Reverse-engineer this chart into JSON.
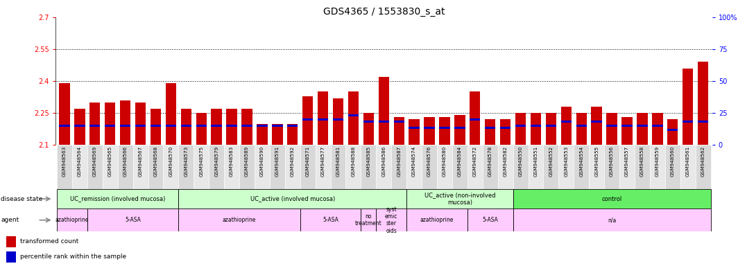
{
  "title": "GDS4365 / 1553830_s_at",
  "samples": [
    "GSM948563",
    "GSM948564",
    "GSM948569",
    "GSM948565",
    "GSM948566",
    "GSM948567",
    "GSM948568",
    "GSM948570",
    "GSM948573",
    "GSM948575",
    "GSM948579",
    "GSM948583",
    "GSM948589",
    "GSM948590",
    "GSM948591",
    "GSM948592",
    "GSM948571",
    "GSM948577",
    "GSM948581",
    "GSM948588",
    "GSM948585",
    "GSM948586",
    "GSM948587",
    "GSM948574",
    "GSM948576",
    "GSM948580",
    "GSM948584",
    "GSM948572",
    "GSM948578",
    "GSM948582",
    "GSM948550",
    "GSM948551",
    "GSM948552",
    "GSM948553",
    "GSM948554",
    "GSM948555",
    "GSM948556",
    "GSM948557",
    "GSM948558",
    "GSM948559",
    "GSM948560",
    "GSM948561",
    "GSM948562"
  ],
  "red_values": [
    2.39,
    2.27,
    2.3,
    2.3,
    2.31,
    2.3,
    2.27,
    2.39,
    2.27,
    2.25,
    2.27,
    2.27,
    2.27,
    2.2,
    2.2,
    2.2,
    2.33,
    2.35,
    2.32,
    2.35,
    2.25,
    2.42,
    2.23,
    2.22,
    2.23,
    2.23,
    2.24,
    2.35,
    2.22,
    2.22,
    2.25,
    2.25,
    2.25,
    2.28,
    2.25,
    2.28,
    2.25,
    2.23,
    2.25,
    2.25,
    2.22,
    2.46,
    2.49
  ],
  "blue_values": [
    2.19,
    2.19,
    2.19,
    2.19,
    2.19,
    2.19,
    2.19,
    2.19,
    2.19,
    2.19,
    2.19,
    2.19,
    2.19,
    2.19,
    2.19,
    2.19,
    2.22,
    2.22,
    2.22,
    2.24,
    2.21,
    2.21,
    2.21,
    2.18,
    2.18,
    2.18,
    2.18,
    2.22,
    2.18,
    2.18,
    2.19,
    2.19,
    2.19,
    2.21,
    2.19,
    2.21,
    2.19,
    2.19,
    2.19,
    2.19,
    2.17,
    2.21,
    2.21
  ],
  "ylim_left": [
    2.1,
    2.7
  ],
  "ylim_right": [
    0,
    100
  ],
  "yticks_left": [
    2.1,
    2.25,
    2.4,
    2.55,
    2.7
  ],
  "yticks_right": [
    0,
    25,
    50,
    75,
    100
  ],
  "ytick_labels_left": [
    "2.1",
    "2.25",
    "2.4",
    "2.55",
    "2.7"
  ],
  "ytick_labels_right": [
    "0",
    "25",
    "50",
    "75",
    "100%"
  ],
  "hlines": [
    2.25,
    2.4,
    2.55
  ],
  "disease_state_groups": [
    {
      "label": "UC_remission (involved mucosa)",
      "start": 0,
      "end": 8,
      "color": "#ccffcc"
    },
    {
      "label": "UC_active (involved mucosa)",
      "start": 8,
      "end": 23,
      "color": "#ccffcc"
    },
    {
      "label": "UC_active (non-involved\nmucosa)",
      "start": 23,
      "end": 30,
      "color": "#ccffcc"
    },
    {
      "label": "control",
      "start": 30,
      "end": 43,
      "color": "#66ee66"
    }
  ],
  "agent_groups": [
    {
      "label": "azathioprine",
      "start": 0,
      "end": 2,
      "color": "#ffccff"
    },
    {
      "label": "5-ASA",
      "start": 2,
      "end": 8,
      "color": "#ffccff"
    },
    {
      "label": "azathioprine",
      "start": 8,
      "end": 16,
      "color": "#ffccff"
    },
    {
      "label": "5-ASA",
      "start": 16,
      "end": 20,
      "color": "#ffccff"
    },
    {
      "label": "no\ntreatment",
      "start": 20,
      "end": 21,
      "color": "#ffccff"
    },
    {
      "label": "syst\nemic\nster\noids",
      "start": 21,
      "end": 23,
      "color": "#ffccff"
    },
    {
      "label": "azathioprine",
      "start": 23,
      "end": 27,
      "color": "#ffccff"
    },
    {
      "label": "5-ASA",
      "start": 27,
      "end": 30,
      "color": "#ffccff"
    },
    {
      "label": "n/a",
      "start": 30,
      "end": 43,
      "color": "#ffccff"
    }
  ],
  "bar_color_red": "#cc0000",
  "bar_color_blue": "#0000cc",
  "bar_width": 0.7,
  "background_color": "#ffffff",
  "title_fontsize": 10,
  "tick_fontsize": 7,
  "label_fontsize": 7
}
